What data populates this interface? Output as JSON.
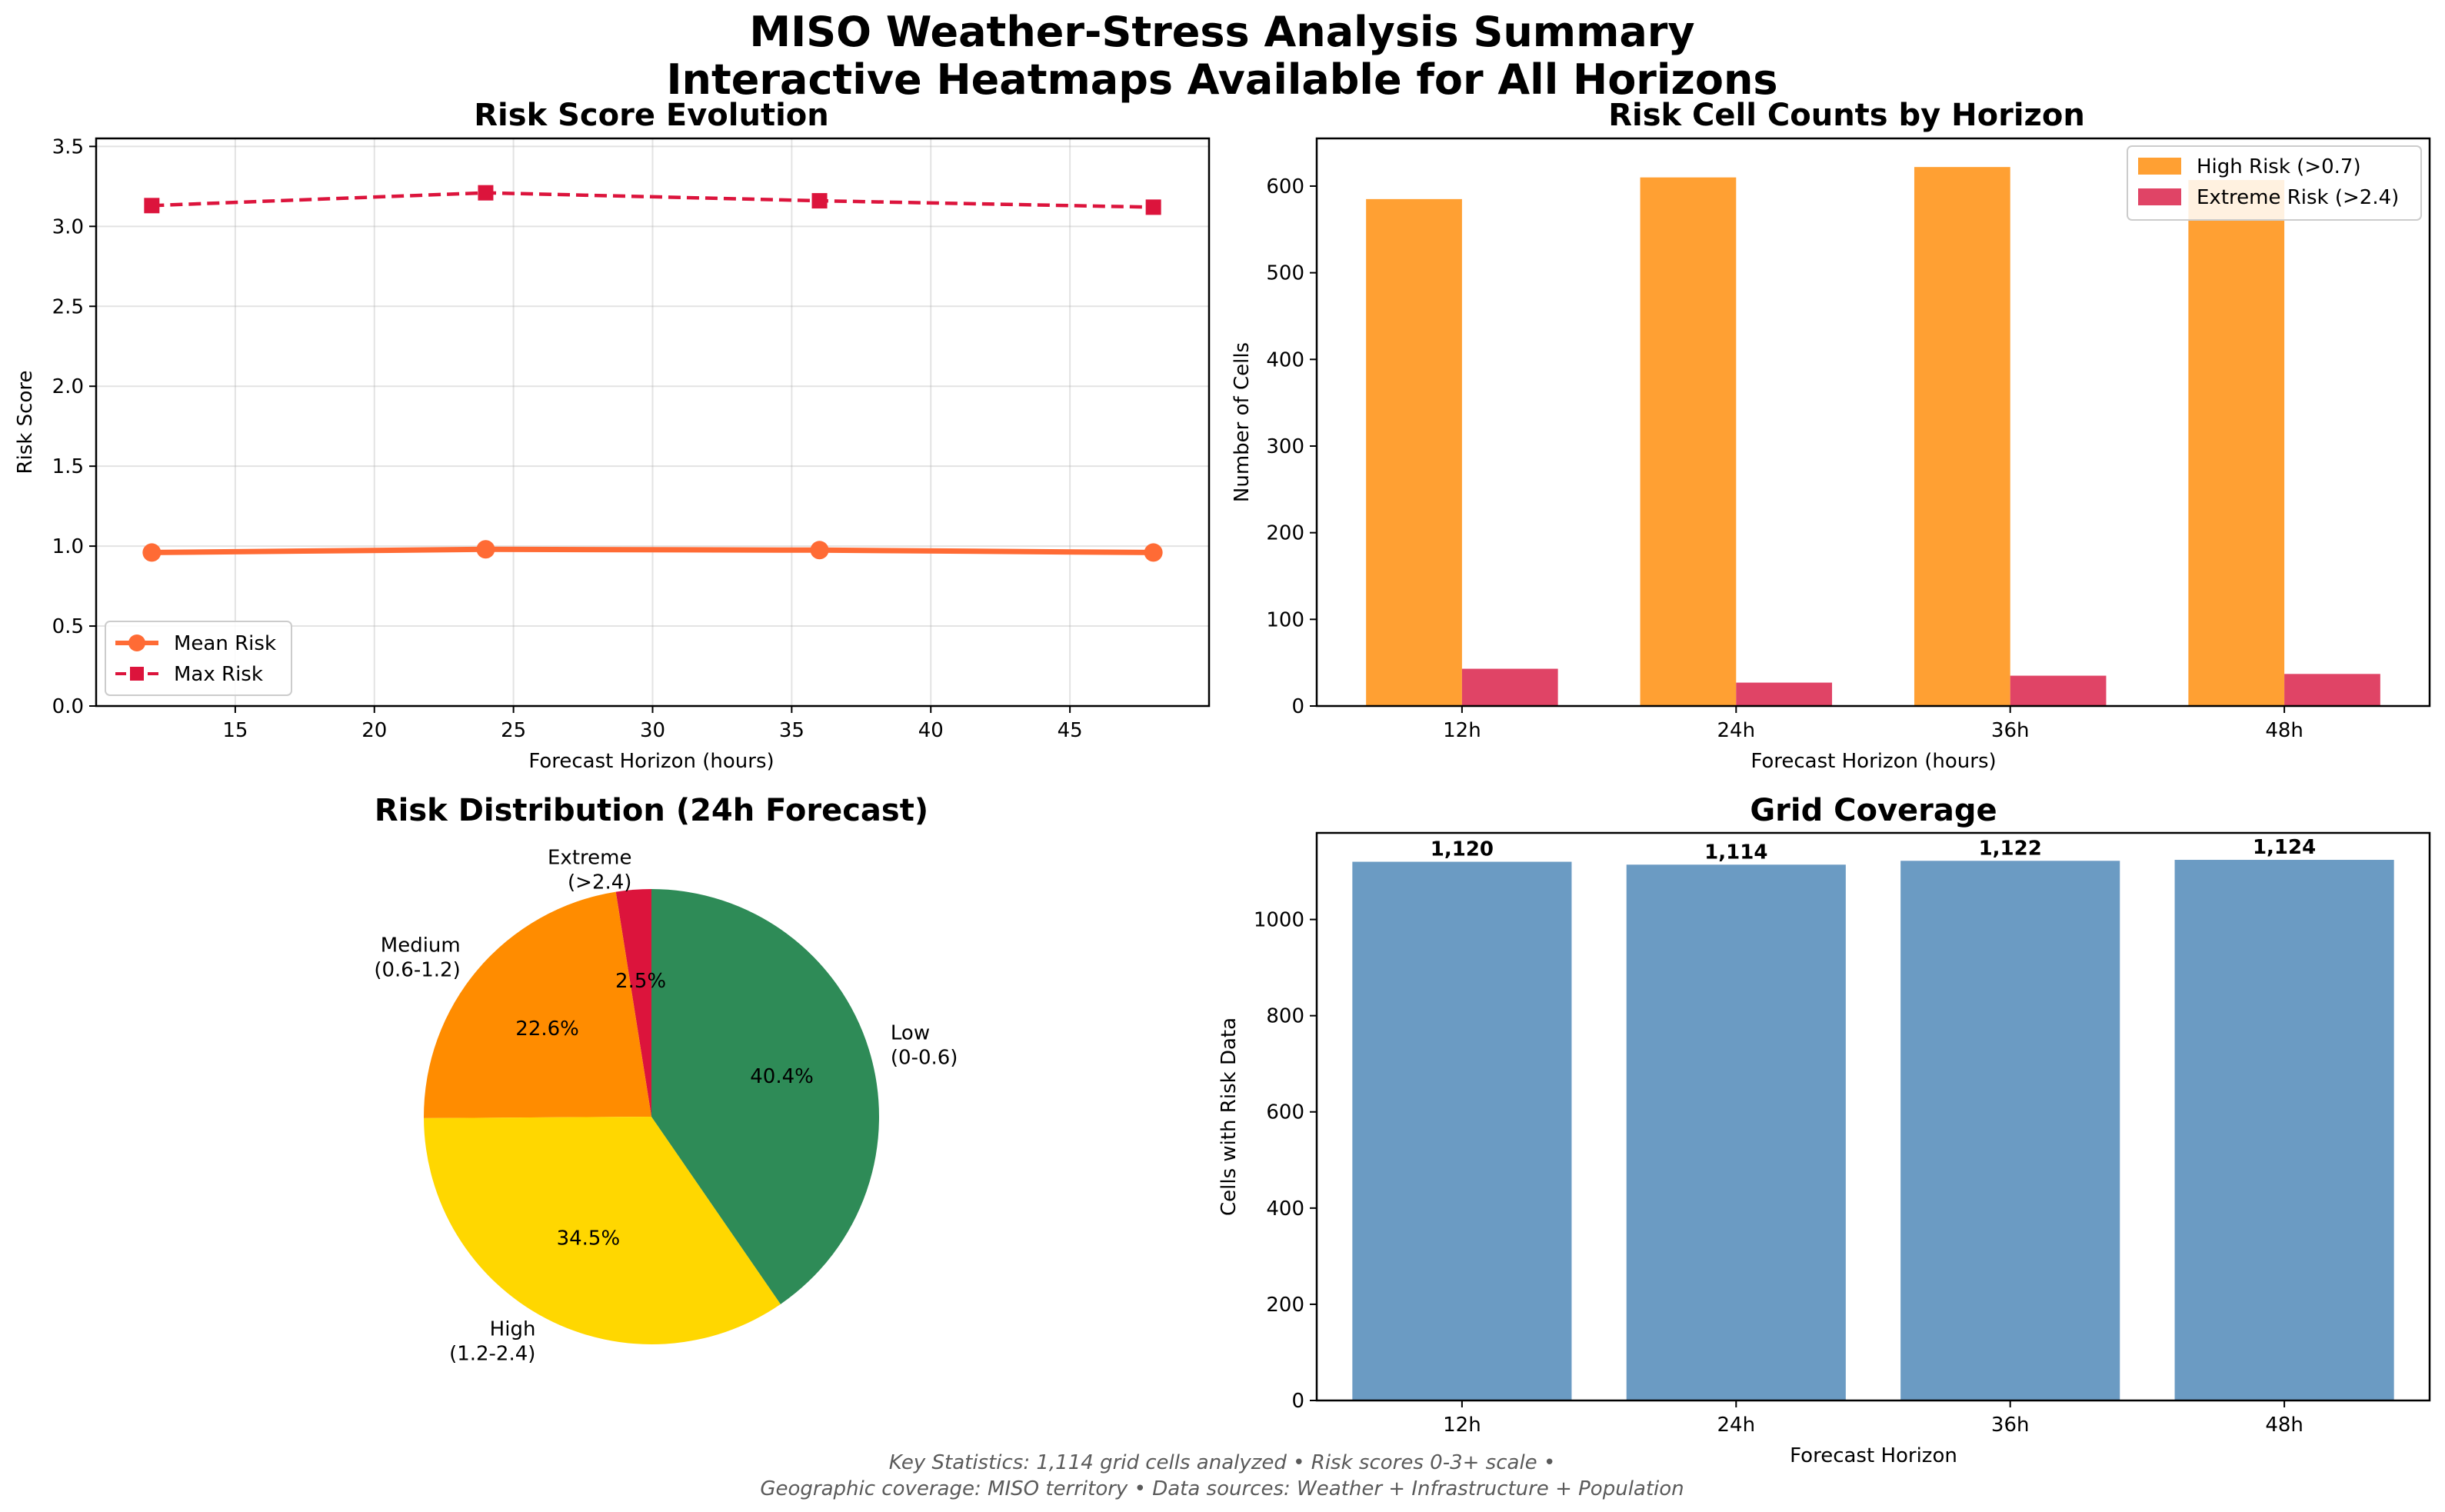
{
  "figure": {
    "title_line1": "MISO Weather-Stress Analysis Summary",
    "title_line2": "Interactive Heatmaps Available for All Horizons",
    "footer_line1": "Key Statistics: 1,114 grid cells analyzed • Risk scores 0-3+ scale •",
    "footer_line2": "Geographic coverage: MISO territory • Data sources: Weather + Infrastructure + Population"
  },
  "colors": {
    "mean_risk": "#ff6b35",
    "max_risk": "#dc143c",
    "high_risk_bar": "#ffa033",
    "extreme_risk_bar": "#e04466",
    "coverage_bar": "#6b9bc3",
    "pie_low": "#2e8b57",
    "pie_high": "#ffd700",
    "pie_medium": "#ff8c00",
    "pie_extreme": "#dc143c"
  },
  "chart_data": [
    {
      "id": "risk_evolution",
      "type": "line",
      "title": "Risk Score Evolution",
      "xlabel": "Forecast Horizon (hours)",
      "ylabel": "Risk Score",
      "xlim": [
        10,
        50
      ],
      "ylim": [
        0,
        3.55
      ],
      "xticks": [
        15,
        20,
        25,
        30,
        35,
        40,
        45
      ],
      "yticks": [
        0.0,
        0.5,
        1.0,
        1.5,
        2.0,
        2.5,
        3.0,
        3.5
      ],
      "ytick_labels": [
        "0.0",
        "0.5",
        "1.0",
        "1.5",
        "2.0",
        "2.5",
        "3.0",
        "3.5"
      ],
      "grid": true,
      "legend_position": "lower-left",
      "x": [
        12,
        24,
        36,
        48
      ],
      "series": [
        {
          "name": "Mean Risk",
          "values": [
            0.96,
            0.98,
            0.975,
            0.96
          ],
          "color": "#ff6b35",
          "marker": "circle",
          "line": "solid"
        },
        {
          "name": "Max Risk",
          "values": [
            3.13,
            3.21,
            3.16,
            3.12
          ],
          "color": "#dc143c",
          "marker": "square",
          "line": "dashed"
        }
      ]
    },
    {
      "id": "risk_counts",
      "type": "bar",
      "title": "Risk Cell Counts by Horizon",
      "xlabel": "Forecast Horizon (hours)",
      "ylabel": "Number of Cells",
      "categories": [
        "12h",
        "24h",
        "36h",
        "48h"
      ],
      "ylim": [
        0,
        655
      ],
      "yticks": [
        0,
        100,
        200,
        300,
        400,
        500,
        600
      ],
      "legend_position": "top-right",
      "series": [
        {
          "name": "High Risk (>0.7)",
          "values": [
            585,
            610,
            622,
            607
          ],
          "color": "#ffa033"
        },
        {
          "name": "Extreme Risk (>2.4)",
          "values": [
            43,
            27,
            35,
            37
          ],
          "color": "#e04466"
        }
      ]
    },
    {
      "id": "risk_distribution",
      "type": "pie",
      "title": "Risk Distribution (24h Forecast)",
      "slices": [
        {
          "label_line1": "Extreme",
          "label_line2": "(>2.4)",
          "value": 2.5,
          "pct_label": "2.5%",
          "color": "#dc143c"
        },
        {
          "label_line1": "Medium",
          "label_line2": "(0.6-1.2)",
          "value": 22.6,
          "pct_label": "22.6%",
          "color": "#ff8c00"
        },
        {
          "label_line1": "High",
          "label_line2": "(1.2-2.4)",
          "value": 34.5,
          "pct_label": "34.5%",
          "color": "#ffd700"
        },
        {
          "label_line1": "Low",
          "label_line2": "(0-0.6)",
          "value": 40.4,
          "pct_label": "40.4%",
          "color": "#2e8b57"
        }
      ]
    },
    {
      "id": "grid_coverage",
      "type": "bar",
      "title": "Grid Coverage",
      "xlabel": "Forecast Horizon",
      "ylabel": "Cells with Risk Data",
      "categories": [
        "12h",
        "24h",
        "36h",
        "48h"
      ],
      "values": [
        1120,
        1114,
        1122,
        1124
      ],
      "value_labels": [
        "1,120",
        "1,114",
        "1,122",
        "1,124"
      ],
      "ylim": [
        0,
        1180
      ],
      "yticks": [
        0,
        200,
        400,
        600,
        800,
        1000
      ],
      "color": "#6b9bc3"
    }
  ]
}
